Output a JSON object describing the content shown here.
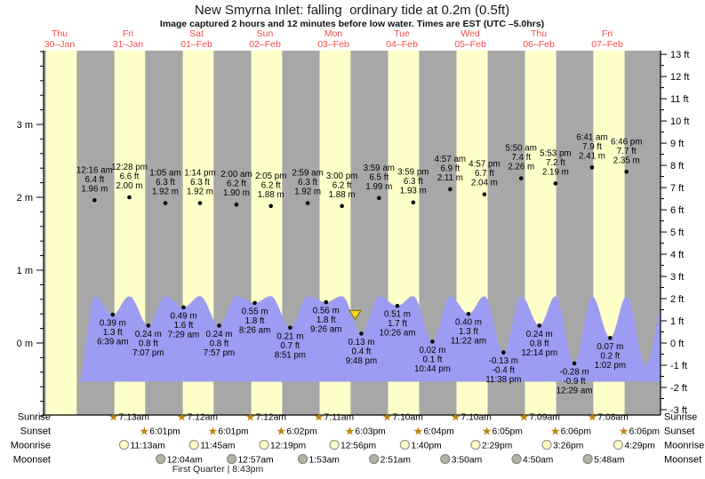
{
  "header": {
    "title": "New Smyrna Inlet: falling  ordinary tide at 0.2m (0.5ft)",
    "subtitle": "Image captured 2 hours and 12 minutes before low water. Times are EST (UTC –5.0hrs)"
  },
  "chart_data": {
    "type": "area",
    "title": "New Smyrna Inlet: falling  ordinary tide at 0.2m (0.5ft)",
    "subtitle": "Image captured 2 hours and 12 minutes before low water. Times are EST (UTC –5.0hrs)",
    "grid": false,
    "legend": false,
    "days": [
      {
        "weekday": "Thu",
        "date": "30–Jan"
      },
      {
        "weekday": "Fri",
        "date": "31–Jan"
      },
      {
        "weekday": "Sat",
        "date": "01–Feb"
      },
      {
        "weekday": "Sun",
        "date": "02–Feb"
      },
      {
        "weekday": "Mon",
        "date": "03–Feb"
      },
      {
        "weekday": "Tue",
        "date": "04–Feb"
      },
      {
        "weekday": "Wed",
        "date": "05–Feb"
      },
      {
        "weekday": "Thu",
        "date": "06–Feb"
      },
      {
        "weekday": "Fri",
        "date": "07–Feb"
      }
    ],
    "y_axis_left": {
      "unit": "m",
      "tick_labels": [
        0,
        1,
        2,
        3
      ],
      "range": [
        -1.0,
        4.0
      ],
      "minor_step": 0.2
    },
    "y_axis_right": {
      "unit": "ft",
      "tick_labels": [
        -3,
        -2,
        -1,
        0,
        1,
        2,
        3,
        4,
        5,
        6,
        7,
        8,
        9,
        10,
        11,
        12,
        13
      ],
      "range": [
        -3.2,
        13.2
      ],
      "minor_step": 0.5
    },
    "tide_events": [
      {
        "day": 1,
        "time": "12:16 am",
        "ft": 6.4,
        "m": 1.96,
        "type": "high"
      },
      {
        "day": 1,
        "time": "6:39 am",
        "ft": 1.3,
        "m": 0.39,
        "type": "low"
      },
      {
        "day": 1,
        "time": "12:28 pm",
        "ft": 6.6,
        "m": 2.0,
        "type": "high"
      },
      {
        "day": 1,
        "time": "7:07 pm",
        "ft": 0.8,
        "m": 0.24,
        "type": "low"
      },
      {
        "day": 2,
        "time": "1:05 am",
        "ft": 6.3,
        "m": 1.92,
        "type": "high"
      },
      {
        "day": 2,
        "time": "7:29 am",
        "ft": 1.6,
        "m": 0.49,
        "type": "low"
      },
      {
        "day": 2,
        "time": "1:14 pm",
        "ft": 6.3,
        "m": 1.92,
        "type": "high"
      },
      {
        "day": 2,
        "time": "7:57 pm",
        "ft": 0.8,
        "m": 0.24,
        "type": "low"
      },
      {
        "day": 3,
        "time": "2:00 am",
        "ft": 6.2,
        "m": 1.9,
        "type": "high"
      },
      {
        "day": 3,
        "time": "8:26 am",
        "ft": 1.8,
        "m": 0.55,
        "type": "low"
      },
      {
        "day": 3,
        "time": "2:05 pm",
        "ft": 6.2,
        "m": 1.88,
        "type": "high"
      },
      {
        "day": 3,
        "time": "8:51 pm",
        "ft": 0.7,
        "m": 0.21,
        "type": "low"
      },
      {
        "day": 4,
        "time": "2:59 am",
        "ft": 6.3,
        "m": 1.92,
        "type": "high"
      },
      {
        "day": 4,
        "time": "9:26 am",
        "ft": 1.8,
        "m": 0.56,
        "type": "low"
      },
      {
        "day": 4,
        "time": "3:00 pm",
        "ft": 6.2,
        "m": 1.88,
        "type": "high"
      },
      {
        "day": 4,
        "time": "9:48 pm",
        "ft": 0.4,
        "m": 0.13,
        "type": "low"
      },
      {
        "day": 5,
        "time": "3:59 am",
        "ft": 6.5,
        "m": 1.99,
        "type": "high"
      },
      {
        "day": 5,
        "time": "10:26 am",
        "ft": 1.7,
        "m": 0.51,
        "type": "low"
      },
      {
        "day": 5,
        "time": "3:59 pm",
        "ft": 6.3,
        "m": 1.93,
        "type": "high"
      },
      {
        "day": 5,
        "time": "10:44 pm",
        "ft": 0.1,
        "m": 0.02,
        "type": "low"
      },
      {
        "day": 6,
        "time": "4:57 am",
        "ft": 6.9,
        "m": 2.11,
        "type": "high"
      },
      {
        "day": 6,
        "time": "11:22 am",
        "ft": 1.3,
        "m": 0.4,
        "type": "low"
      },
      {
        "day": 6,
        "time": "4:57 pm",
        "ft": 6.7,
        "m": 2.04,
        "type": "high"
      },
      {
        "day": 6,
        "time": "11:38 pm",
        "ft": -0.4,
        "m": -0.13,
        "type": "low"
      },
      {
        "day": 7,
        "time": "5:50 am",
        "ft": 7.4,
        "m": 2.26,
        "type": "high"
      },
      {
        "day": 7,
        "time": "12:14 pm",
        "ft": 0.8,
        "m": 0.24,
        "type": "low"
      },
      {
        "day": 7,
        "time": "5:53 pm",
        "ft": 7.2,
        "m": 2.19,
        "type": "high"
      },
      {
        "day": 8,
        "time": "12:29 am",
        "ft": -0.9,
        "m": -0.28,
        "type": "low"
      },
      {
        "day": 8,
        "time": "6:41 am",
        "ft": 7.9,
        "m": 2.41,
        "type": "high"
      },
      {
        "day": 8,
        "time": "1:02 pm",
        "ft": 0.2,
        "m": 0.07,
        "type": "low"
      },
      {
        "day": 8,
        "time": "6:46 pm",
        "ft": 7.7,
        "m": 2.35,
        "type": "high"
      }
    ],
    "current_marker": {
      "day": 4,
      "time": "7:36 pm"
    }
  },
  "astro": {
    "rows": [
      {
        "label": "Sunrise",
        "icon": "sunrise-star",
        "entries": [
          {
            "day": 1,
            "time": "7:13am"
          },
          {
            "day": 2,
            "time": "7:12am"
          },
          {
            "day": 3,
            "time": "7:12am"
          },
          {
            "day": 4,
            "time": "7:11am"
          },
          {
            "day": 5,
            "time": "7:10am"
          },
          {
            "day": 6,
            "time": "7:10am"
          },
          {
            "day": 7,
            "time": "7:09am"
          },
          {
            "day": 8,
            "time": "7:08am"
          }
        ]
      },
      {
        "label": "Sunset",
        "icon": "sunset-star",
        "entries": [
          {
            "day": 1,
            "time": "6:01pm"
          },
          {
            "day": 2,
            "time": "6:01pm"
          },
          {
            "day": 3,
            "time": "6:02pm"
          },
          {
            "day": 4,
            "time": "6:03pm"
          },
          {
            "day": 5,
            "time": "6:04pm"
          },
          {
            "day": 6,
            "time": "6:05pm"
          },
          {
            "day": 7,
            "time": "6:06pm"
          },
          {
            "day": 8,
            "time": "6:06pm"
          }
        ]
      },
      {
        "label": "Moonrise",
        "icon": "moonrise-circle",
        "entries": [
          {
            "day": 1,
            "time": "11:13am"
          },
          {
            "day": 2,
            "time": "11:45am"
          },
          {
            "day": 3,
            "time": "12:19pm"
          },
          {
            "day": 4,
            "time": "12:56pm"
          },
          {
            "day": 5,
            "time": "1:40pm"
          },
          {
            "day": 6,
            "time": "2:29pm"
          },
          {
            "day": 7,
            "time": "3:26pm"
          },
          {
            "day": 8,
            "time": "4:29pm"
          }
        ]
      },
      {
        "label": "Moonset",
        "icon": "moonset-circle",
        "entries": [
          {
            "day": 2,
            "time": "12:04am"
          },
          {
            "day": 3,
            "time": "12:57am"
          },
          {
            "day": 4,
            "time": "1:53am"
          },
          {
            "day": 5,
            "time": "2:51am"
          },
          {
            "day": 6,
            "time": "3:50am"
          },
          {
            "day": 7,
            "time": "4:50am"
          },
          {
            "day": 8,
            "time": "5:48am"
          }
        ]
      }
    ],
    "footer": "First Quarter | 8:43pm"
  },
  "colors": {
    "night_band": "#a7a7a7",
    "daylight_band": "#ffffc9",
    "water": "#9c9cf2",
    "day_label": "#fb4b4b",
    "axis_text": "#000000",
    "star": "#b8860b",
    "moonrise_fill": "#ffffc9",
    "moonrise_stroke": "#999988",
    "moonset_fill": "#b3b3a9",
    "moonset_stroke": "#88887a",
    "marker_fill": "#f5d327",
    "marker_stroke": "#7a6a00"
  }
}
